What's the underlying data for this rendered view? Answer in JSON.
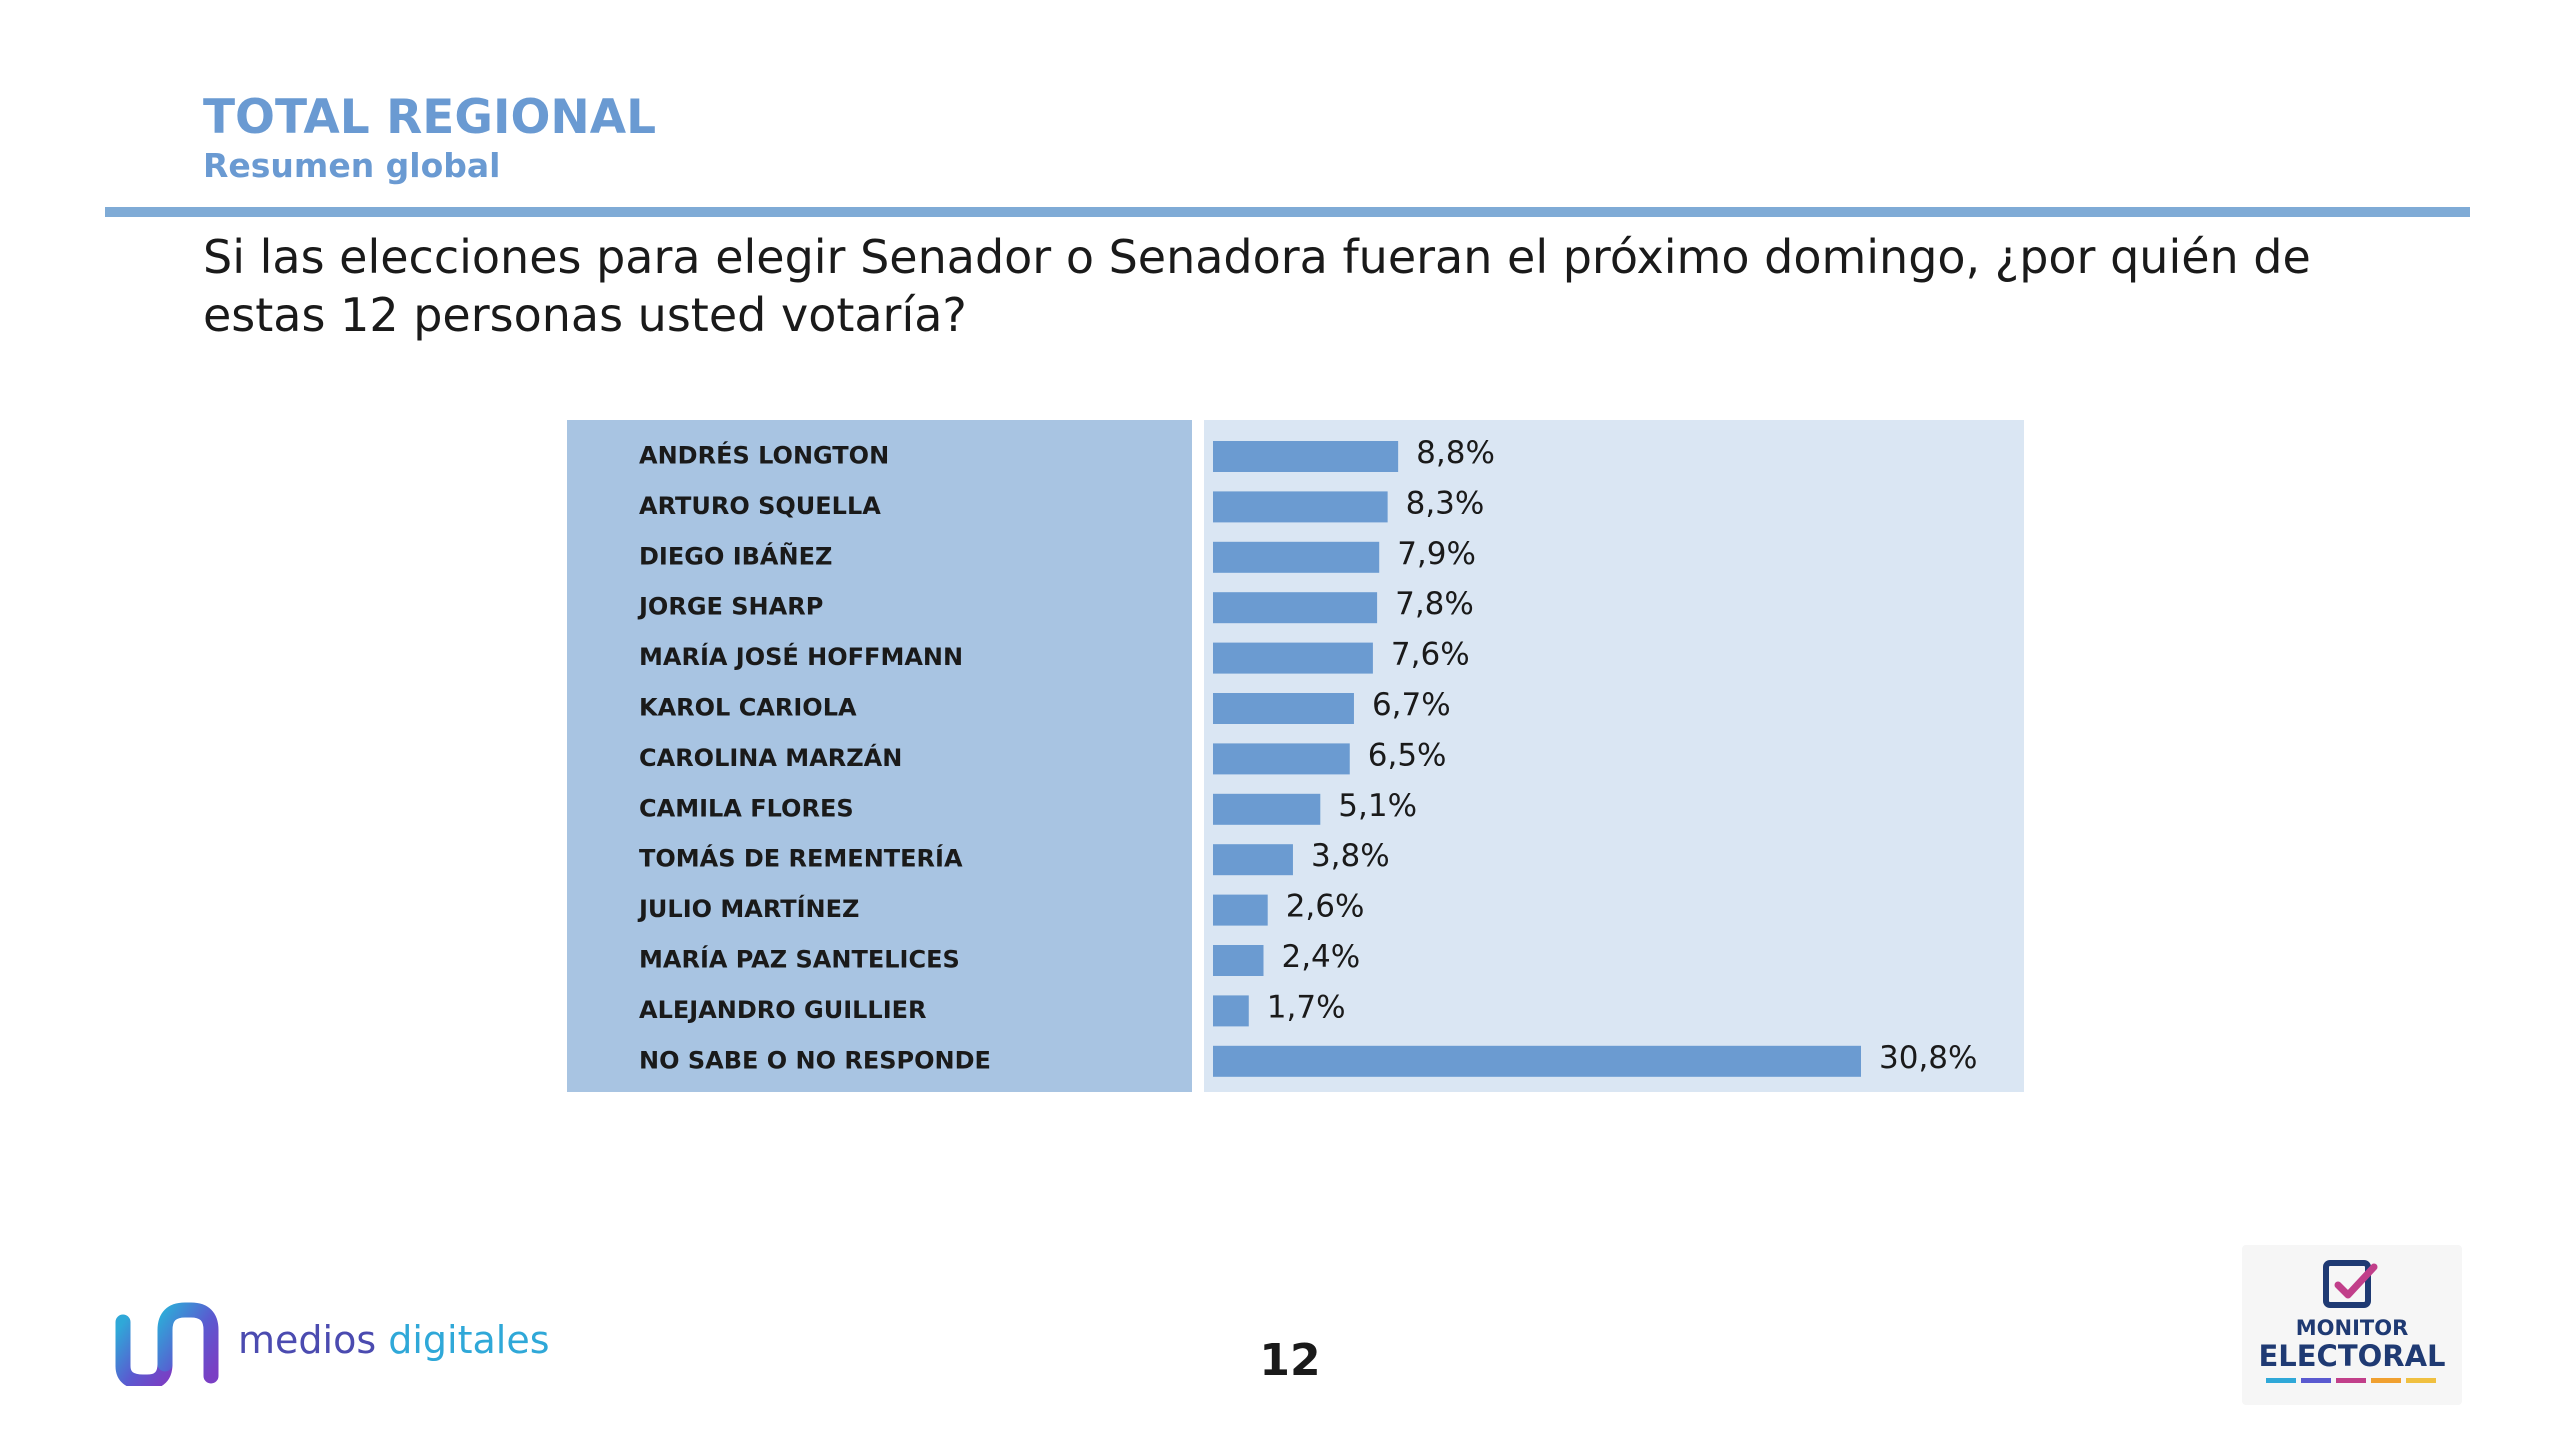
{
  "header": {
    "title": "TOTAL REGIONAL",
    "subtitle": "Resumen global"
  },
  "question": "Si las elecciones para elegir Senador o Senadora fueran el próximo domingo, ¿por quién de estas 12 personas usted votaría?",
  "chart_data": {
    "type": "bar",
    "orientation": "horizontal",
    "categories": [
      "ANDRÉS LONGTON",
      "ARTURO SQUELLA",
      "DIEGO IBÁÑEZ",
      "JORGE SHARP",
      "MARÍA JOSÉ HOFFMANN",
      "KAROL CARIOLA",
      "CAROLINA MARZÁN",
      "CAMILA FLORES",
      "TOMÁS DE REMENTERÍA",
      "JULIO MARTÍNEZ",
      "MARÍA PAZ SANTELICES",
      "ALEJANDRO GUILLIER",
      "NO SABE O NO RESPONDE"
    ],
    "values": [
      8.8,
      8.3,
      7.9,
      7.8,
      7.6,
      6.7,
      6.5,
      5.1,
      3.8,
      2.6,
      2.4,
      1.7,
      30.8
    ],
    "value_labels": [
      "8,8%",
      "8,3%",
      "7,9%",
      "7,8%",
      "7,6%",
      "6,7%",
      "6,5%",
      "5,1%",
      "3,8%",
      "2,6%",
      "2,4%",
      "1,7%",
      "30,8%"
    ],
    "xlim": [
      0,
      30.8
    ],
    "grid": false,
    "colors": {
      "bar": "#6b9bd1",
      "label_panel": "#a8c4e2",
      "plot_panel": "#dae6f3"
    }
  },
  "footer": {
    "page_number": "12",
    "left_logo": {
      "word1": "medios",
      "word2": "digitales",
      "icon": "medios-digitales-logo-icon"
    },
    "right_logo": {
      "line1": "MONITOR",
      "line2": "ELECTORAL",
      "icon": "ballot-check-icon"
    }
  }
}
